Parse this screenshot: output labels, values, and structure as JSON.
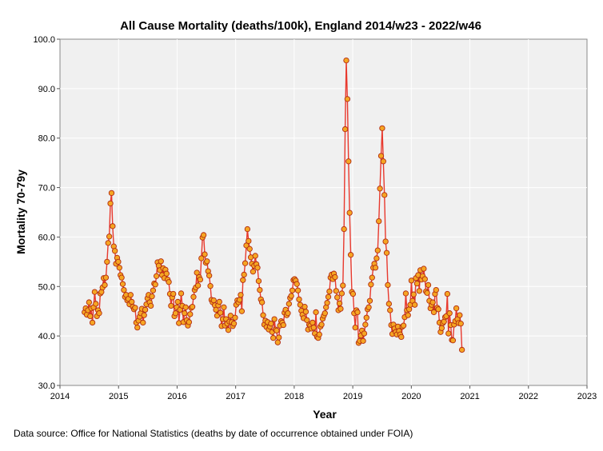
{
  "chart_data": {
    "type": "line",
    "title": "All Cause Mortality (deaths/100k), England 2014/w23 - 2022/w46",
    "xlabel": "Year",
    "ylabel": "Mortality 70-79y",
    "xlim": [
      2014,
      2023
    ],
    "ylim": [
      30.0,
      100.0
    ],
    "x_ticks": [
      "2014",
      "2015",
      "2016",
      "2017",
      "2018",
      "2019",
      "2020",
      "2021",
      "2022",
      "2023"
    ],
    "y_ticks": [
      "30.0",
      "40.0",
      "50.0",
      "60.0",
      "70.0",
      "80.0",
      "90.0",
      "100.0"
    ],
    "grid": true,
    "series": [
      {
        "name": "Mortality 70-79y",
        "line_color": "#e8392e",
        "marker_fill": "#f5a623",
        "marker_edge": "#b22a10",
        "start_year": 2014.42,
        "week_step": 0.01918,
        "values": [
          44.8,
          45.6,
          44.3,
          45.2,
          46.8,
          44.0,
          45.6,
          42.7,
          45.8,
          48.9,
          46.5,
          44.0,
          45.2,
          44.6,
          48.6,
          48.9,
          49.8,
          51.7,
          50.3,
          51.8,
          55.0,
          58.8,
          60.1,
          66.8,
          68.9,
          62.2,
          58.1,
          57.2,
          54.6,
          55.8,
          55.0,
          53.8,
          52.3,
          51.8,
          50.5,
          49.3,
          47.9,
          48.3,
          47.2,
          47.5,
          46.4,
          48.3,
          46.9,
          45.9,
          45.4,
          45.7,
          42.7,
          41.7,
          43.1,
          43.9,
          44.6,
          45.5,
          42.7,
          44.2,
          45.3,
          46.4,
          47.6,
          48.3,
          46.8,
          46.1,
          48.0,
          49.2,
          50.6,
          50.4,
          52.1,
          54.9,
          54.2,
          53.3,
          55.1,
          52.3,
          53.7,
          51.7,
          53.4,
          52.6,
          51.4,
          50.9,
          48.5,
          46.1,
          47.8,
          48.5,
          44.0,
          44.6,
          45.8,
          46.9,
          42.6,
          45.3,
          48.6,
          46.1,
          42.8,
          44.6,
          45.8,
          43.2,
          42.1,
          42.8,
          44.4,
          45.7,
          45.9,
          47.9,
          49.3,
          49.8,
          52.8,
          50.2,
          51.9,
          51.4,
          55.7,
          59.9,
          60.4,
          56.5,
          54.8,
          55.1,
          53.1,
          52.2,
          50.1,
          47.3,
          46.8,
          47.2,
          46.2,
          45.3,
          44.1,
          46.2,
          46.9,
          44.7,
          42.0,
          43.4,
          45.8,
          42.1,
          43.4,
          42.5,
          41.2,
          42.9,
          44.1,
          42.8,
          42.0,
          42.5,
          43.7,
          46.3,
          47.2,
          46.8,
          47.3,
          48.3,
          45.0,
          51.3,
          52.4,
          54.7,
          58.3,
          61.6,
          59.2,
          57.6,
          55.9,
          54.6,
          53.0,
          54.2,
          56.2,
          54.5,
          53.8,
          51.1,
          49.3,
          47.4,
          46.8,
          44.2,
          42.3,
          43.1,
          41.8,
          42.8,
          41.3,
          41.9,
          42.5,
          40.8,
          39.6,
          43.4,
          41.3,
          41.1,
          38.7,
          39.7,
          42.1,
          43.0,
          42.7,
          42.2,
          44.7,
          45.3,
          44.2,
          44.6,
          46.5,
          47.7,
          48.1,
          49.2,
          51.3,
          51.5,
          51.2,
          50.5,
          49.2,
          47.4,
          46.3,
          45.1,
          44.3,
          43.6,
          45.9,
          44.9,
          43.2,
          41.3,
          42.3,
          42.1,
          41.5,
          42.7,
          41.7,
          40.5,
          44.8,
          39.8,
          39.6,
          40.3,
          41.9,
          42.3,
          43.5,
          44.1,
          44.6,
          45.8,
          46.7,
          47.9,
          49.0,
          51.8,
          52.4,
          51.5,
          52.6,
          51.9,
          49.1,
          47.8,
          45.2,
          46.6,
          45.5,
          48.6,
          50.2,
          61.6,
          81.8,
          95.7,
          87.9,
          75.3,
          64.9,
          56.4,
          48.9,
          48.5,
          44.6,
          41.7,
          45.2,
          44.8,
          38.6,
          39.0,
          40.1,
          41.1,
          39.0,
          40.5,
          42.3,
          43.7,
          45.4,
          45.8,
          47.1,
          50.4,
          51.8,
          53.8,
          54.6,
          53.8,
          55.7,
          57.3,
          63.2,
          69.8,
          76.4,
          82.0,
          75.3,
          68.5,
          59.1,
          56.8,
          50.3,
          46.5,
          45.2,
          42.2,
          40.4,
          42.3,
          41.5,
          40.8,
          40.3,
          41.9,
          41.0,
          40.3,
          39.8,
          41.9,
          42.1,
          43.8,
          48.6,
          45.2,
          44.2,
          45.4,
          46.3,
          51.2,
          47.1,
          48.4,
          46.3,
          51.7,
          50.6,
          52.3,
          49.1,
          53.3,
          51.4,
          52.1,
          53.6,
          51.5,
          49.0,
          48.7,
          50.3,
          47.1,
          45.6,
          46.3,
          46.8,
          44.8,
          48.5,
          49.3,
          45.7,
          45.4,
          42.7,
          40.8,
          41.6,
          42.6,
          42.9,
          43.8,
          44.0,
          48.5,
          40.5,
          44.6,
          42.2,
          39.2,
          39.1,
          42.3,
          43.0,
          45.6,
          43.4,
          42.6,
          44.2,
          42.5,
          37.2
        ]
      }
    ]
  },
  "source_note": "Data source: Office for National Statistics (deaths by date of occurrence obtained under FOIA)"
}
